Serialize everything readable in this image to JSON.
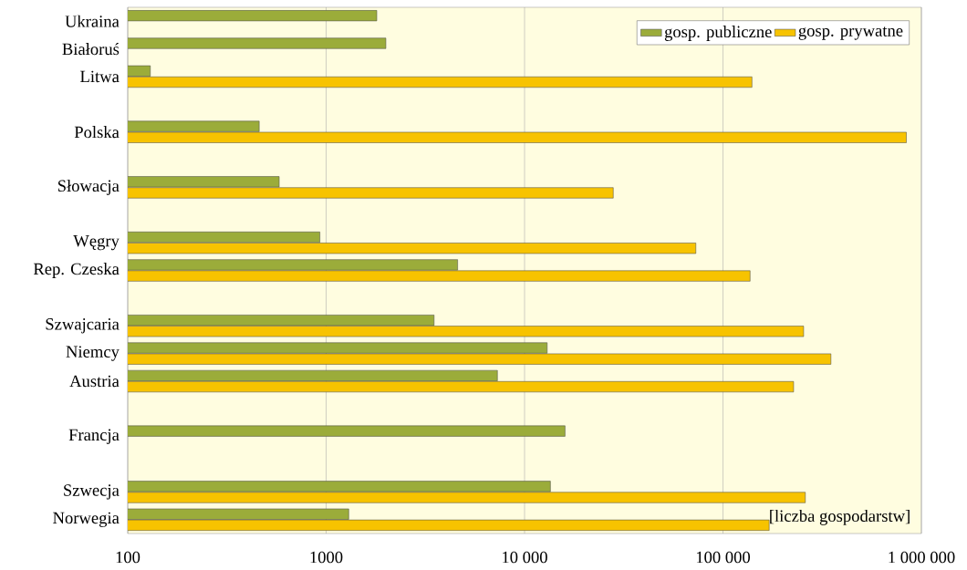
{
  "chart_data": {
    "type": "bar",
    "orientation": "horizontal",
    "log": "x",
    "xlabel": "[liczba gospodarstw]",
    "categories": [
      "Ukraina",
      "Białoruś",
      "Litwa",
      null,
      "Polska",
      null,
      "Słowacja",
      null,
      "Węgry",
      "Rep. Czeska",
      null,
      "Szwajcaria",
      "Niemcy",
      "Austria",
      null,
      "Francja",
      null,
      "Szwecja",
      "Norwegia"
    ],
    "series": [
      {
        "name": "gosp. publiczne",
        "color": "#9bac3a",
        "values": [
          1800,
          2000,
          130,
          null,
          460,
          null,
          580,
          null,
          930,
          4600,
          null,
          3500,
          13000,
          7300,
          null,
          16000,
          null,
          13500,
          1300
        ]
      },
      {
        "name": "gosp. prywatne",
        "color": "#f7c300",
        "values": [
          null,
          null,
          140000,
          null,
          840000,
          null,
          28000,
          null,
          73000,
          137000,
          null,
          255000,
          350000,
          227000,
          null,
          null,
          null,
          260000,
          171000
        ]
      }
    ],
    "xlim": [
      100,
      1000000
    ],
    "xticks": [
      100,
      1000,
      {
        "value": 10000,
        "label": "10 000"
      },
      {
        "value": 100000,
        "label": "100 000"
      },
      {
        "value": 1000000,
        "label": "1 000 000"
      }
    ],
    "grid": "x",
    "legend": "top right"
  }
}
